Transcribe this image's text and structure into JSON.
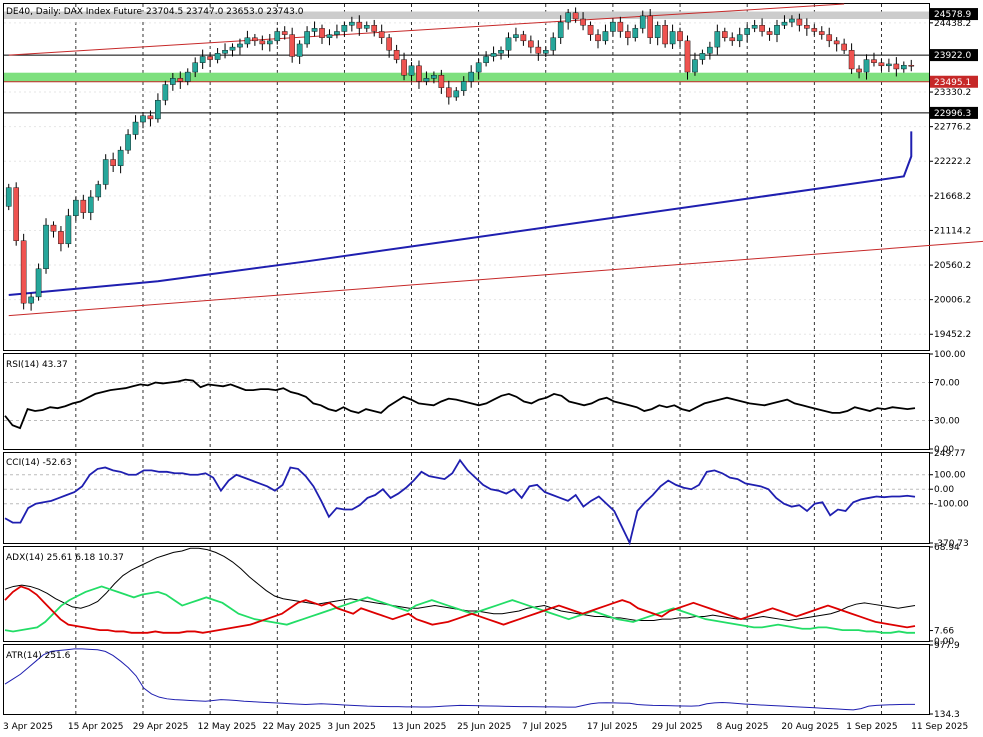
{
  "header": {
    "symbol_label": "DE40, Daily:  DAX Index Future",
    "ohlc_label": "23704.5 23747.0 23653.0 23743.0"
  },
  "colors": {
    "bull": "#26a69a",
    "bear": "#ef5350",
    "ma": "#1f1fb0",
    "channel": "#c62828",
    "support_zone": "#7ee07e",
    "resistance_zone": "#cccccc",
    "rsi": "#000000",
    "cci": "#1f1fb0",
    "adx_main": "#000000",
    "adx_plus": "#22dd66",
    "adx_minus": "#dd0000",
    "atr": "#1f1fb0"
  },
  "chart_data": [
    {
      "type": "candlestick",
      "title": "DE40, Daily:  DAX Index Future",
      "ylim": [
        19200,
        24740
      ],
      "y_ticks": [
        "24438.2",
        "23330.2",
        "22776.2",
        "22222.2",
        "21668.2",
        "21114.2",
        "20560.2",
        "20006.2",
        "19452.2"
      ],
      "price_tags": [
        "24578.9",
        "23922.0",
        "23495.1",
        "22996.3"
      ],
      "x_labels": [
        "3 Apr 2025",
        "15 Apr 2025",
        "29 Apr 2025",
        "12 May 2025",
        "22 May 2025",
        "3 Jun 2025",
        "13 Jun 2025",
        "25 Jun 2025",
        "7 Jul 2025",
        "17 Jul 2025",
        "29 Jul 2025",
        "8 Aug 2025",
        "20 Aug 2025",
        "1 Sep 2025",
        "11 Sep 2025"
      ],
      "levels": {
        "resistance_zone": [
          24500,
          24620
        ],
        "horizontal_line": 23922.0,
        "support_zone": [
          23495.1,
          23640
        ],
        "lower_line": 22996.3
      },
      "ma_line": [
        [
          0,
          20080
        ],
        [
          20,
          20300
        ],
        [
          40,
          20620
        ],
        [
          60,
          20960
        ],
        [
          80,
          21300
        ],
        [
          100,
          21640
        ],
        [
          120,
          21980
        ],
        [
          140,
          22300
        ],
        [
          160,
          22550
        ],
        [
          172,
          22700
        ]
      ],
      "channel_upper": [
        [
          0,
          23922
        ],
        [
          112,
          24740
        ]
      ],
      "channel_lower": [
        [
          0,
          19750
        ],
        [
          156,
          21170
        ]
      ],
      "series": [
        {
          "name": "close",
          "values": [
            21800,
            20950,
            19950,
            20050,
            20500,
            21200,
            21100,
            20900,
            21350,
            21600,
            21400,
            21650,
            21850,
            22250,
            22150,
            22400,
            22650,
            22850,
            22950,
            22900,
            23200,
            23450,
            23550,
            23500,
            23650,
            23800,
            23900,
            23850,
            23950,
            24000,
            24050,
            24100,
            24200,
            24150,
            24100,
            24150,
            24300,
            24250,
            23900,
            24100,
            24300,
            24350,
            24200,
            24250,
            24300,
            24400,
            24450,
            24350,
            24400,
            24300,
            24200,
            24000,
            23850,
            23600,
            23750,
            23500,
            23550,
            23600,
            23400,
            23250,
            23350,
            23500,
            23650,
            23800,
            23900,
            23950,
            24000,
            24200,
            24250,
            24150,
            24050,
            23950,
            24000,
            24200,
            24450,
            24600,
            24500,
            24400,
            24250,
            24150,
            24300,
            24450,
            24300,
            24200,
            24350,
            24550,
            24200,
            24400,
            24100,
            24300,
            24150,
            23650,
            23850,
            23950,
            24050,
            24300,
            24200,
            24150,
            24250,
            24350,
            24400,
            24300,
            24250,
            24400,
            24450,
            24500,
            24400,
            24350,
            24300,
            24250,
            24150,
            24100,
            24000,
            23700,
            23650,
            23850,
            23800,
            23750,
            23780,
            23700,
            23760,
            23743
          ]
        },
        {
          "name": "open",
          "values": [
            21500,
            21800,
            20950,
            19950,
            20050,
            20500,
            21200,
            21100,
            20900,
            21350,
            21600,
            21400,
            21650,
            21850,
            22250,
            22150,
            22400,
            22650,
            22850,
            22950,
            22900,
            23200,
            23450,
            23550,
            23500,
            23650,
            23800,
            23900,
            23850,
            23950,
            24000,
            24050,
            24100,
            24200,
            24150,
            24100,
            24150,
            24300,
            24250,
            23900,
            24100,
            24300,
            24350,
            24200,
            24250,
            24300,
            24400,
            24450,
            24350,
            24400,
            24300,
            24200,
            24000,
            23850,
            23600,
            23750,
            23500,
            23550,
            23600,
            23400,
            23250,
            23350,
            23500,
            23650,
            23800,
            23900,
            23950,
            24000,
            24200,
            24250,
            24150,
            24050,
            23950,
            24000,
            24200,
            24450,
            24600,
            24500,
            24400,
            24250,
            24150,
            24300,
            24450,
            24300,
            24200,
            24350,
            24550,
            24200,
            24400,
            24100,
            24300,
            24150,
            23650,
            23850,
            23950,
            24050,
            24300,
            24200,
            24150,
            24250,
            24350,
            24400,
            24300,
            24250,
            24400,
            24450,
            24500,
            24400,
            24350,
            24300,
            24250,
            24150,
            24100,
            24000,
            23700,
            23650,
            23850,
            23800,
            23750,
            23780,
            23700,
            23760
          ]
        }
      ]
    },
    {
      "type": "line",
      "title": "RSI(14) 43.37",
      "ylim": [
        0,
        100
      ],
      "y_ticks": [
        "100.00",
        "70.00",
        "30.00",
        "0.00"
      ],
      "levels": [
        70,
        30
      ],
      "values": [
        35,
        25,
        22,
        42,
        40,
        41,
        44,
        43,
        45,
        48,
        50,
        54,
        58,
        60,
        62,
        63,
        64,
        66,
        68,
        67,
        70,
        69,
        70,
        71,
        73,
        72,
        65,
        68,
        67,
        66,
        68,
        65,
        62,
        62,
        63,
        63,
        62,
        64,
        60,
        58,
        55,
        48,
        46,
        42,
        40,
        44,
        40,
        38,
        42,
        40,
        38,
        45,
        50,
        55,
        52,
        48,
        47,
        46,
        50,
        53,
        52,
        50,
        48,
        46,
        48,
        52,
        56,
        58,
        55,
        50,
        48,
        52,
        54,
        58,
        56,
        50,
        48,
        46,
        48,
        52,
        54,
        50,
        48,
        46,
        44,
        40,
        42,
        46,
        44,
        46,
        42,
        40,
        44,
        48,
        50,
        52,
        54,
        52,
        50,
        48,
        47,
        46,
        48,
        50,
        52,
        48,
        46,
        44,
        42,
        40,
        38,
        38,
        40,
        44,
        42,
        40,
        43,
        42,
        44,
        43,
        42,
        43
      ]
    },
    {
      "type": "line",
      "title": "CCI(14) -52.63",
      "ylim": [
        -370.73,
        249.77
      ],
      "y_ticks": [
        "249.77",
        "100.00",
        "0.00",
        "-100.00",
        "-370.73"
      ],
      "levels": [
        100,
        0,
        -100
      ],
      "values": [
        -200,
        -230,
        -230,
        -130,
        -100,
        -90,
        -80,
        -60,
        -40,
        -20,
        20,
        100,
        140,
        150,
        130,
        120,
        100,
        100,
        130,
        130,
        120,
        120,
        110,
        110,
        100,
        100,
        110,
        80,
        -10,
        60,
        100,
        80,
        60,
        40,
        20,
        -10,
        30,
        150,
        140,
        90,
        20,
        -80,
        -190,
        -130,
        -140,
        -140,
        -110,
        -60,
        -40,
        0,
        -60,
        -30,
        10,
        60,
        120,
        90,
        80,
        70,
        110,
        200,
        130,
        80,
        30,
        0,
        -10,
        -30,
        0,
        -60,
        20,
        30,
        -20,
        -40,
        -60,
        -80,
        -40,
        -120,
        -80,
        -50,
        -100,
        -150,
        -260,
        -370,
        -150,
        -90,
        -40,
        20,
        60,
        30,
        10,
        0,
        30,
        120,
        130,
        110,
        80,
        70,
        40,
        30,
        20,
        0,
        -60,
        -100,
        -120,
        -110,
        -150,
        -100,
        -90,
        -180,
        -140,
        -150,
        -90,
        -70,
        -60,
        -50,
        -55,
        -50,
        -50,
        -45,
        -52
      ]
    },
    {
      "type": "line",
      "title": "ADX(14) 25.61 6.18 10.37",
      "ylim": [
        0,
        68.94
      ],
      "y_ticks": [
        "68.94",
        "7.66",
        "0.00"
      ],
      "series": [
        {
          "name": "ADX",
          "values": [
            38,
            40,
            41,
            40,
            38,
            35,
            31,
            28,
            25,
            24,
            26,
            29,
            35,
            42,
            48,
            52,
            55,
            58,
            61,
            63,
            65,
            66,
            68,
            68,
            67,
            65,
            62,
            58,
            53,
            47,
            42,
            37,
            33,
            31,
            30,
            29,
            28,
            27,
            28,
            29,
            30,
            31,
            30,
            29,
            28,
            27,
            26,
            25,
            24,
            24,
            25,
            26,
            25,
            24,
            23,
            22,
            22,
            21,
            20,
            20,
            21,
            22,
            24,
            25,
            26,
            24,
            22,
            21,
            20,
            19,
            18,
            18,
            17,
            17,
            16,
            15,
            15,
            15,
            16,
            16,
            17,
            17,
            18,
            18,
            19,
            18,
            17,
            16,
            16,
            17,
            18,
            17,
            16,
            15,
            16,
            17,
            18,
            19,
            20,
            22,
            25,
            27,
            28,
            27,
            26,
            25,
            24,
            25,
            26
          ]
        },
        {
          "name": "+DI",
          "values": [
            8,
            7,
            8,
            9,
            10,
            14,
            20,
            26,
            30,
            33,
            36,
            38,
            40,
            38,
            36,
            34,
            32,
            34,
            35,
            36,
            34,
            30,
            26,
            28,
            30,
            32,
            30,
            28,
            24,
            20,
            18,
            16,
            15,
            14,
            13,
            12,
            14,
            16,
            18,
            20,
            22,
            24,
            26,
            28,
            30,
            32,
            30,
            28,
            26,
            24,
            22,
            26,
            28,
            30,
            28,
            26,
            24,
            22,
            20,
            22,
            24,
            26,
            28,
            30,
            28,
            26,
            24,
            22,
            20,
            18,
            16,
            18,
            20,
            22,
            20,
            18,
            16,
            15,
            14,
            16,
            18,
            20,
            22,
            24,
            22,
            20,
            18,
            16,
            15,
            14,
            13,
            12,
            11,
            10,
            10,
            11,
            12,
            11,
            10,
            9,
            9,
            10,
            10,
            9,
            8,
            8,
            8,
            7,
            7,
            6,
            6,
            7,
            6,
            6
          ]
        },
        {
          "name": "-DI",
          "values": [
            30,
            36,
            40,
            38,
            34,
            28,
            22,
            16,
            12,
            11,
            10,
            9,
            8,
            8,
            7,
            7,
            6,
            6,
            6,
            7,
            6,
            6,
            6,
            7,
            7,
            6,
            7,
            8,
            9,
            10,
            11,
            12,
            14,
            16,
            18,
            20,
            24,
            28,
            30,
            28,
            26,
            28,
            24,
            22,
            20,
            24,
            22,
            20,
            18,
            16,
            18,
            20,
            16,
            14,
            12,
            13,
            14,
            16,
            18,
            20,
            18,
            16,
            14,
            12,
            14,
            16,
            18,
            20,
            22,
            24,
            26,
            24,
            22,
            20,
            22,
            24,
            26,
            28,
            30,
            28,
            24,
            22,
            20,
            18,
            22,
            24,
            26,
            28,
            26,
            24,
            22,
            20,
            18,
            16,
            18,
            20,
            22,
            24,
            22,
            20,
            18,
            20,
            22,
            24,
            26,
            24,
            22,
            20,
            18,
            16,
            14,
            13,
            12,
            11,
            10,
            11
          ]
        }
      ]
    },
    {
      "type": "line",
      "title": "ATR(14) 251.6",
      "ylim": [
        134.3,
        977.9
      ],
      "y_ticks": [
        "977.9",
        "134.3"
      ],
      "values": [
        500,
        560,
        620,
        700,
        780,
        860,
        900,
        910,
        920,
        930,
        930,
        925,
        920,
        900,
        850,
        780,
        700,
        600,
        450,
        380,
        340,
        320,
        310,
        305,
        300,
        295,
        290,
        300,
        310,
        305,
        300,
        290,
        285,
        280,
        275,
        270,
        265,
        260,
        255,
        250,
        255,
        260,
        255,
        250,
        245,
        240,
        235,
        230,
        228,
        226,
        225,
        224,
        222,
        221,
        220,
        220,
        225,
        230,
        235,
        240,
        238,
        236,
        234,
        232,
        230,
        228,
        226,
        225,
        224,
        223,
        222,
        221,
        220,
        219,
        218,
        240,
        260,
        270,
        272,
        270,
        268,
        266,
        250,
        245,
        240,
        238,
        236,
        234,
        232,
        230,
        235,
        260,
        270,
        275,
        270,
        262,
        255,
        250,
        245,
        240,
        235,
        230,
        225,
        220,
        215,
        210,
        205,
        200,
        195,
        190,
        185,
        200,
        230,
        240,
        245,
        248,
        250,
        252,
        251.6
      ]
    }
  ]
}
